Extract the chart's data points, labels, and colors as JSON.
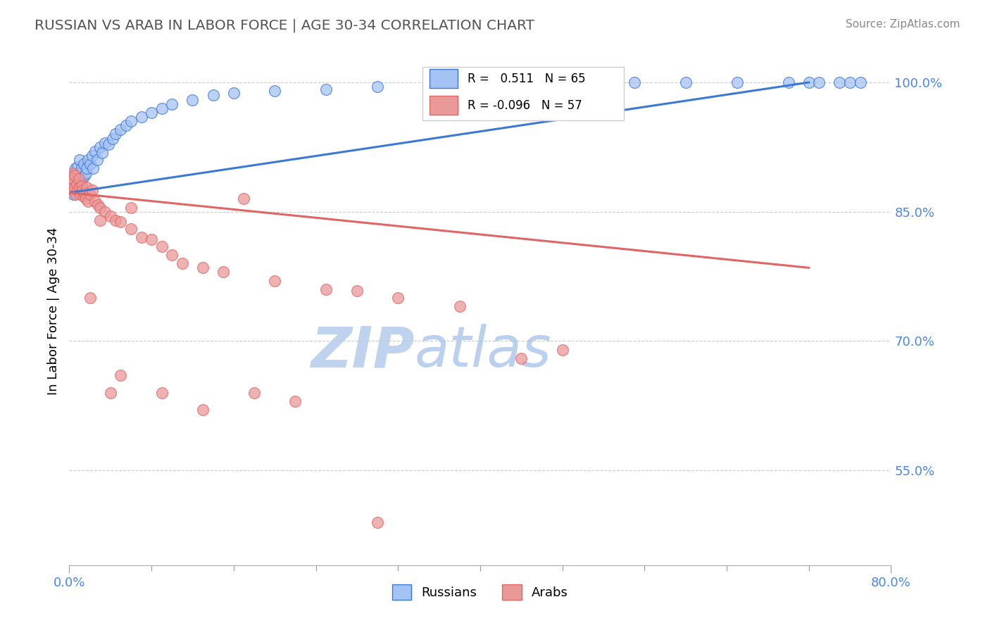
{
  "title": "RUSSIAN VS ARAB IN LABOR FORCE | AGE 30-34 CORRELATION CHART",
  "ylabel": "In Labor Force | Age 30-34",
  "source_text": "Source: ZipAtlas.com",
  "xlim": [
    0.0,
    0.8
  ],
  "ylim": [
    0.44,
    1.03
  ],
  "ytick_labels": [
    "55.0%",
    "70.0%",
    "85.0%",
    "100.0%"
  ],
  "ytick_values": [
    0.55,
    0.7,
    0.85,
    1.0
  ],
  "legend_r_blue": "R =   0.511",
  "legend_n_blue": "N = 65",
  "legend_r_pink": "R = -0.096",
  "legend_n_pink": "N = 57",
  "blue_fill": "#a4c2f4",
  "blue_edge": "#3c78d8",
  "pink_fill": "#ea9999",
  "pink_edge": "#e06666",
  "blue_line_color": "#3c78d8",
  "pink_line_color": "#e06666",
  "watermark_color": "#cfe2ff",
  "blue_trend_x0": 0.0,
  "blue_trend_y0": 0.872,
  "blue_trend_x1": 0.72,
  "blue_trend_y1": 1.0,
  "pink_trend_x0": 0.0,
  "pink_trend_y0": 0.872,
  "pink_trend_x1": 0.72,
  "pink_trend_y1": 0.785,
  "russians_x": [
    0.001,
    0.001,
    0.002,
    0.002,
    0.003,
    0.003,
    0.003,
    0.004,
    0.004,
    0.004,
    0.005,
    0.005,
    0.006,
    0.006,
    0.007,
    0.007,
    0.008,
    0.008,
    0.009,
    0.01,
    0.01,
    0.011,
    0.012,
    0.013,
    0.014,
    0.015,
    0.016,
    0.017,
    0.018,
    0.02,
    0.022,
    0.023,
    0.025,
    0.027,
    0.03,
    0.032,
    0.035,
    0.038,
    0.042,
    0.045,
    0.05,
    0.055,
    0.06,
    0.07,
    0.08,
    0.09,
    0.1,
    0.12,
    0.14,
    0.16,
    0.2,
    0.25,
    0.3,
    0.38,
    0.45,
    0.5,
    0.55,
    0.6,
    0.65,
    0.7,
    0.72,
    0.73,
    0.75,
    0.76,
    0.77
  ],
  "russians_y": [
    0.88,
    0.875,
    0.882,
    0.878,
    0.885,
    0.89,
    0.873,
    0.888,
    0.892,
    0.87,
    0.895,
    0.878,
    0.9,
    0.885,
    0.892,
    0.878,
    0.888,
    0.902,
    0.88,
    0.885,
    0.91,
    0.895,
    0.9,
    0.888,
    0.905,
    0.892,
    0.895,
    0.9,
    0.91,
    0.905,
    0.915,
    0.9,
    0.92,
    0.91,
    0.925,
    0.918,
    0.93,
    0.928,
    0.935,
    0.94,
    0.945,
    0.95,
    0.955,
    0.96,
    0.965,
    0.97,
    0.975,
    0.98,
    0.985,
    0.988,
    0.99,
    0.992,
    0.995,
    0.997,
    0.998,
    1.0,
    1.0,
    1.0,
    1.0,
    1.0,
    1.0,
    1.0,
    1.0,
    1.0,
    1.0
  ],
  "arabs_x": [
    0.001,
    0.001,
    0.002,
    0.002,
    0.003,
    0.003,
    0.004,
    0.005,
    0.005,
    0.006,
    0.007,
    0.008,
    0.009,
    0.01,
    0.011,
    0.012,
    0.013,
    0.014,
    0.015,
    0.016,
    0.017,
    0.018,
    0.02,
    0.022,
    0.025,
    0.028,
    0.03,
    0.035,
    0.04,
    0.045,
    0.05,
    0.06,
    0.07,
    0.08,
    0.09,
    0.1,
    0.11,
    0.13,
    0.15,
    0.2,
    0.25,
    0.28,
    0.32,
    0.38,
    0.44,
    0.48,
    0.17,
    0.06,
    0.02,
    0.03,
    0.04,
    0.05,
    0.09,
    0.13,
    0.18,
    0.22,
    0.3
  ],
  "arabs_y": [
    0.882,
    0.878,
    0.89,
    0.885,
    0.875,
    0.895,
    0.888,
    0.878,
    0.892,
    0.87,
    0.882,
    0.875,
    0.888,
    0.878,
    0.87,
    0.88,
    0.875,
    0.868,
    0.872,
    0.865,
    0.878,
    0.862,
    0.87,
    0.875,
    0.862,
    0.858,
    0.855,
    0.85,
    0.845,
    0.84,
    0.838,
    0.83,
    0.82,
    0.818,
    0.81,
    0.8,
    0.79,
    0.785,
    0.78,
    0.77,
    0.76,
    0.758,
    0.75,
    0.74,
    0.68,
    0.69,
    0.865,
    0.855,
    0.75,
    0.84,
    0.64,
    0.66,
    0.64,
    0.62,
    0.64,
    0.63,
    0.49
  ]
}
